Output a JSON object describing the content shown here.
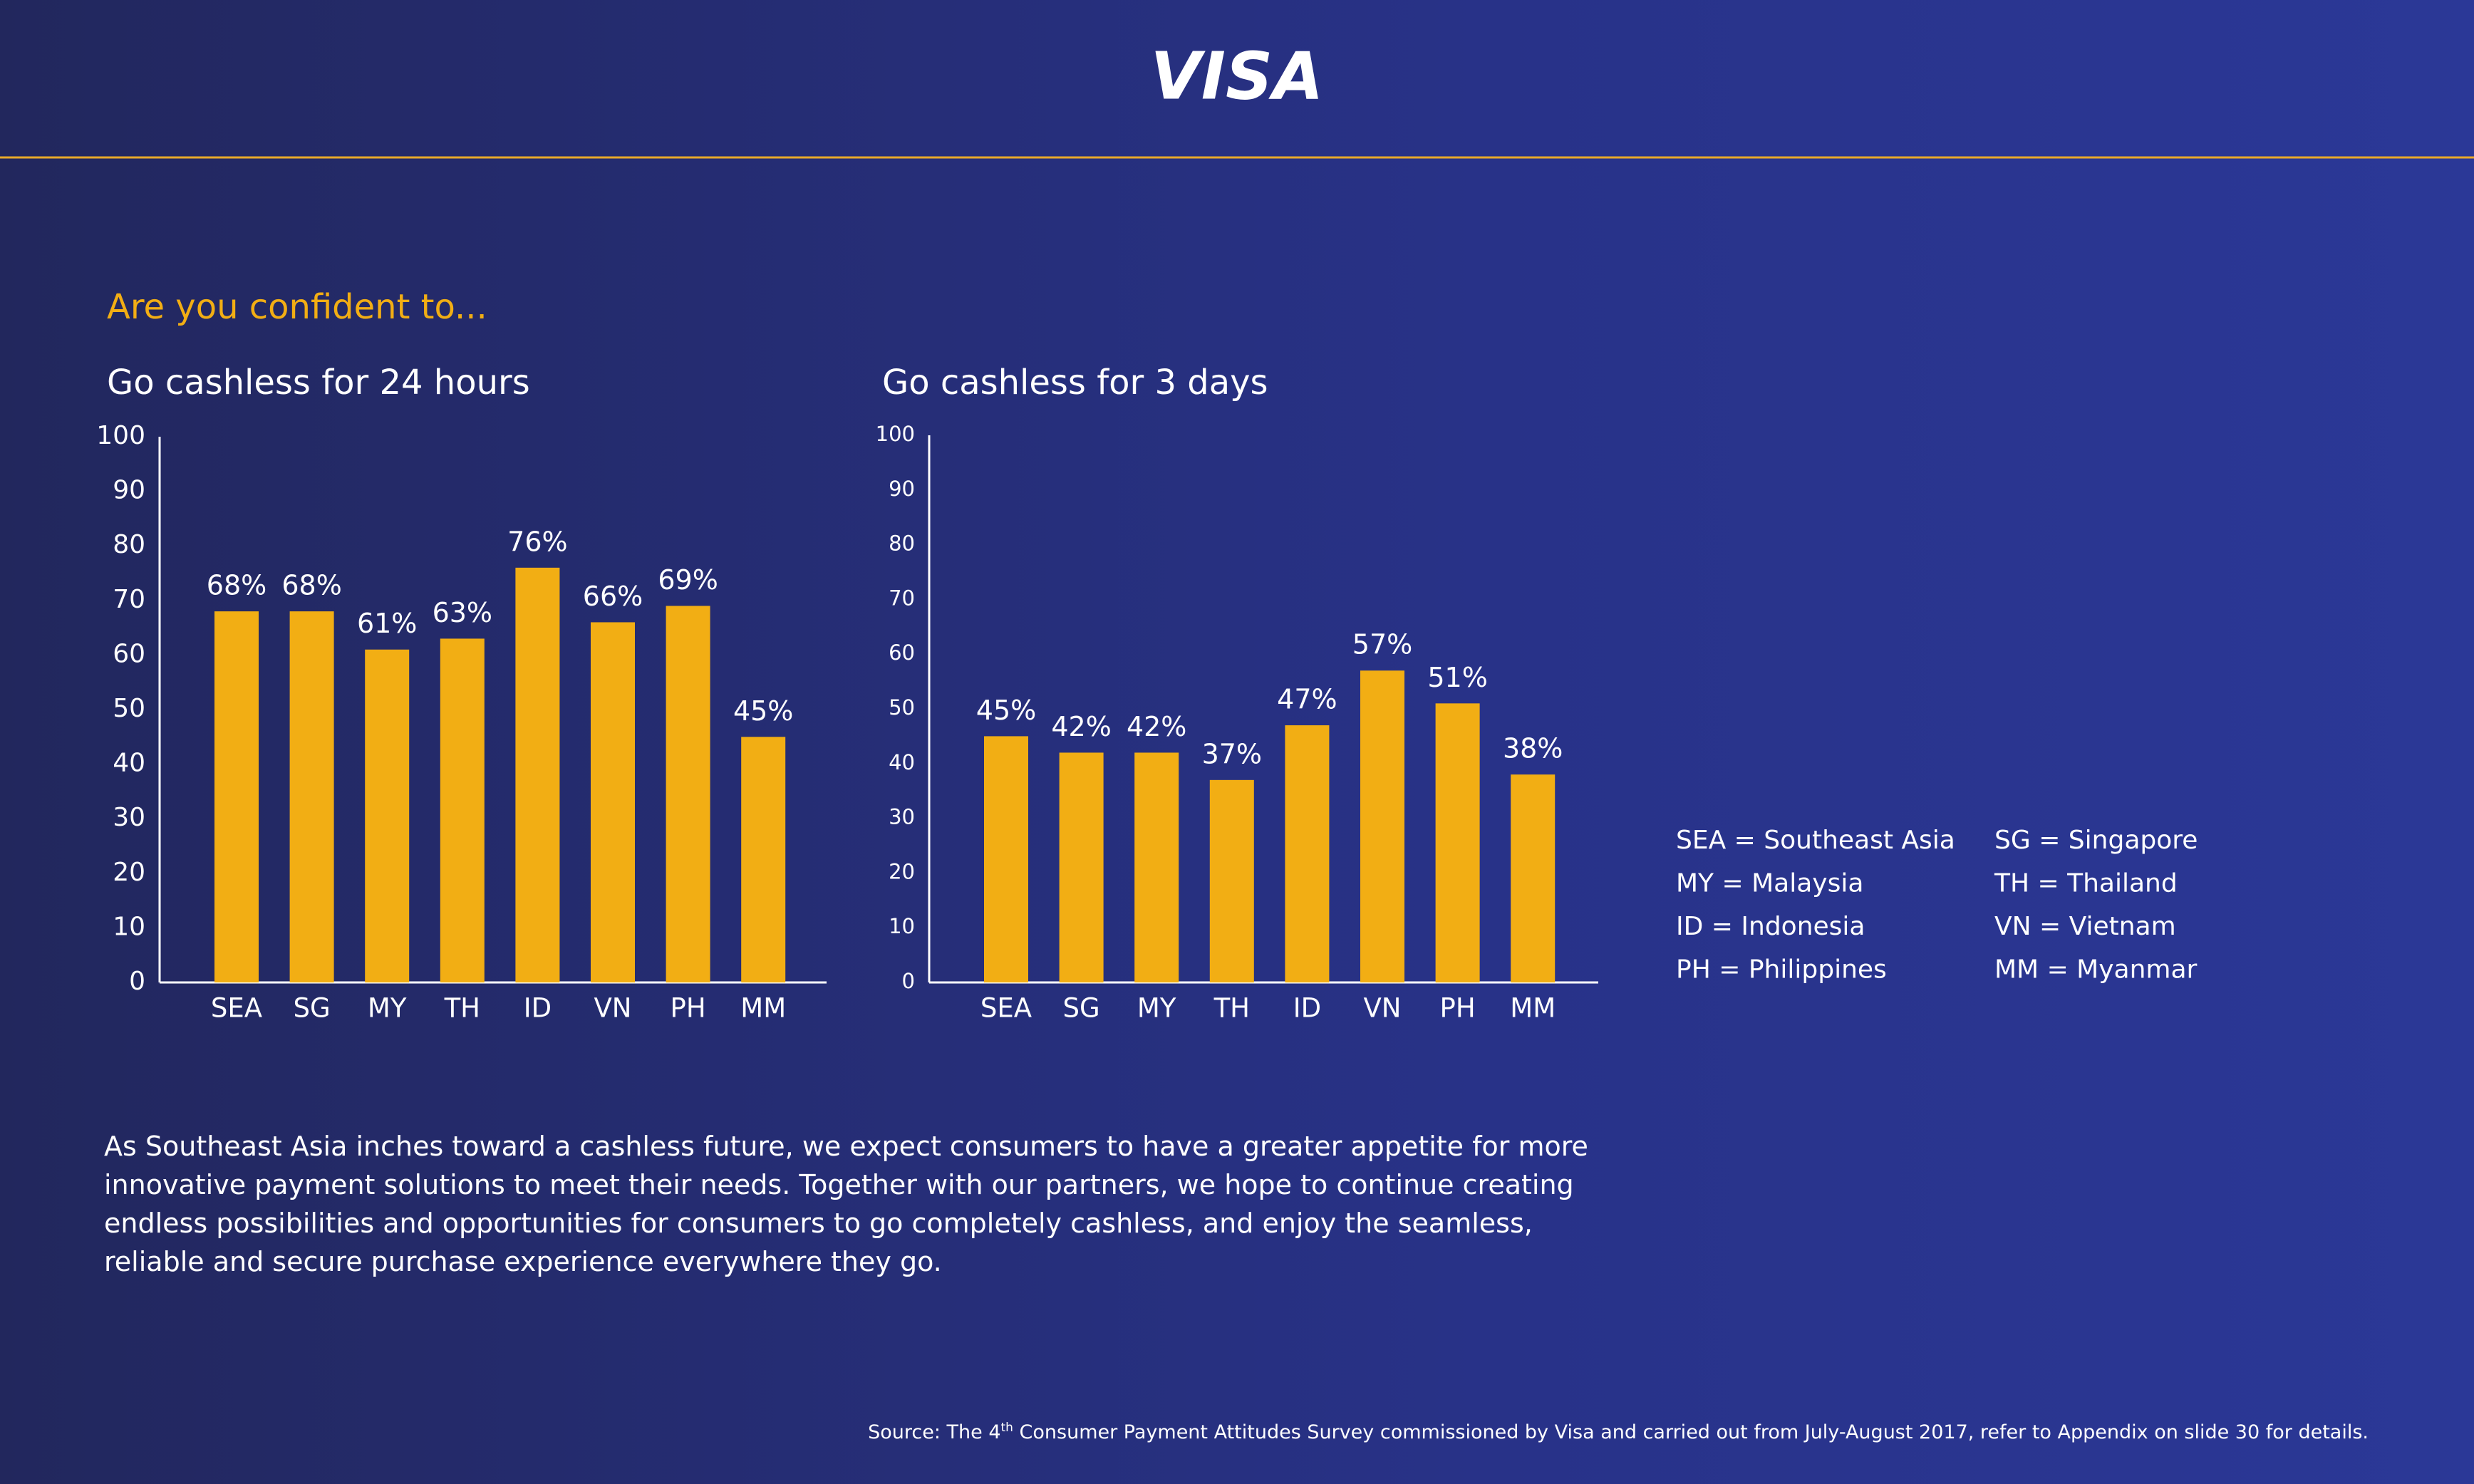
{
  "header": {
    "logo": "VISA"
  },
  "question": "Are you confident to...",
  "chart_data": [
    {
      "type": "bar",
      "title": "Go cashless for 24 hours",
      "categories": [
        "SEA",
        "SG",
        "MY",
        "TH",
        "ID",
        "VN",
        "PH",
        "MM"
      ],
      "values": [
        68,
        68,
        61,
        63,
        76,
        66,
        69,
        45
      ],
      "value_labels": [
        "68%",
        "68%",
        "61%",
        "63%",
        "76%",
        "66%",
        "69%",
        "45%"
      ],
      "color": "#f2ae14",
      "ylim": [
        0,
        100
      ],
      "yticks": [
        0,
        10,
        20,
        30,
        40,
        50,
        60,
        70,
        80,
        90,
        100
      ],
      "grid": false
    },
    {
      "type": "bar",
      "title": "Go cashless for 3 days",
      "categories": [
        "SEA",
        "SG",
        "MY",
        "TH",
        "ID",
        "VN",
        "PH",
        "MM"
      ],
      "values": [
        45,
        42,
        42,
        37,
        47,
        57,
        51,
        38
      ],
      "value_labels": [
        "45%",
        "42%",
        "42%",
        "37%",
        "47%",
        "57%",
        "51%",
        "38%"
      ],
      "color": "#f2ae14",
      "ylim": [
        0,
        100
      ],
      "yticks": [
        0,
        10,
        20,
        30,
        40,
        50,
        60,
        70,
        80,
        90,
        100
      ],
      "grid": false
    }
  ],
  "abbreviations": [
    [
      "SEA = Southeast Asia",
      "SG = Singapore"
    ],
    [
      "MY = Malaysia",
      "TH = Thailand"
    ],
    [
      "ID = Indonesia",
      "VN = Vietnam"
    ],
    [
      "PH = Philippines",
      "MM = Myanmar"
    ]
  ],
  "paragraph": "As Southeast Asia inches toward a cashless future, we expect consumers to have a greater appetite for more innovative payment solutions to meet their needs. Together with our partners, we hope to continue creating endless possibilities and opportunities for consumers to go completely cashless, and enjoy the seamless, reliable and secure purchase experience everywhere they go.",
  "source": {
    "before": "Source: The 4",
    "sup": "th",
    "after": " Consumer Payment Attitudes Survey commissioned by Visa and carried out from July-August 2017, refer to Appendix on slide 30 for details."
  }
}
